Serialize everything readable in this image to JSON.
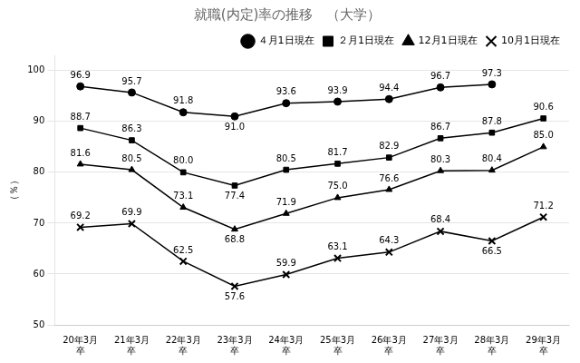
{
  "chart_data": {
    "type": "line",
    "title": "就職(内定)率の推移　（大学）",
    "ylabel": "（％）",
    "categories": [
      "20年3月\n卒",
      "21年3月\n卒",
      "22年3月\n卒",
      "23年3月\n卒",
      "24年3月\n卒",
      "25年3月\n卒",
      "26年3月\n卒",
      "27年3月\n卒",
      "28年3月\n卒",
      "29年3月\n卒"
    ],
    "series": [
      {
        "name": "４月1日現在",
        "color": "#000000",
        "marker": "circle",
        "line_style": "solid",
        "values": [
          96.9,
          95.7,
          91.8,
          91.0,
          93.6,
          93.9,
          94.4,
          96.7,
          97.3,
          null
        ],
        "value_labels": [
          "96.9",
          "95.7",
          "91.8",
          "91.0",
          "93.6",
          "93.9",
          "94.4",
          "96.7",
          "97.3",
          null
        ]
      },
      {
        "name": "２月1日現在",
        "color": "#000000",
        "marker": "square",
        "line_style": "solid",
        "values": [
          88.7,
          86.3,
          80.0,
          77.4,
          80.5,
          81.7,
          82.9,
          86.7,
          87.8,
          90.6
        ],
        "value_labels": [
          "88.7",
          "86.3",
          "80.0",
          "77.4",
          "80.5",
          "81.7",
          "82.9",
          "86.7",
          "87.8",
          "90.6"
        ]
      },
      {
        "name": "12月1日現在",
        "color": "#000000",
        "marker": "triangle",
        "line_style": "solid",
        "values": [
          81.6,
          80.5,
          73.1,
          68.8,
          71.9,
          75.0,
          76.6,
          80.3,
          80.4,
          85.0
        ],
        "value_labels": [
          "81.6",
          "80.5",
          "73.1",
          "68.8",
          "71.9",
          "75.0",
          "76.6",
          "80.3",
          "80.4",
          "85.0"
        ]
      },
      {
        "name": "10月1日現在",
        "color": "#000000",
        "marker": "x",
        "line_style": "solid",
        "values": [
          69.2,
          69.9,
          62.5,
          57.6,
          59.9,
          63.1,
          64.3,
          68.4,
          66.5,
          71.2
        ],
        "value_labels": [
          "69.2",
          "69.9",
          "62.5",
          "57.6",
          "59.9",
          "63.1",
          "64.3",
          "68.4",
          "66.5",
          "71.2"
        ]
      }
    ],
    "data_labels": true,
    "ylim": [
      50,
      103
    ],
    "yticks": [
      50,
      60,
      70,
      80,
      90,
      100
    ],
    "grid": true,
    "legend": "upper right"
  }
}
